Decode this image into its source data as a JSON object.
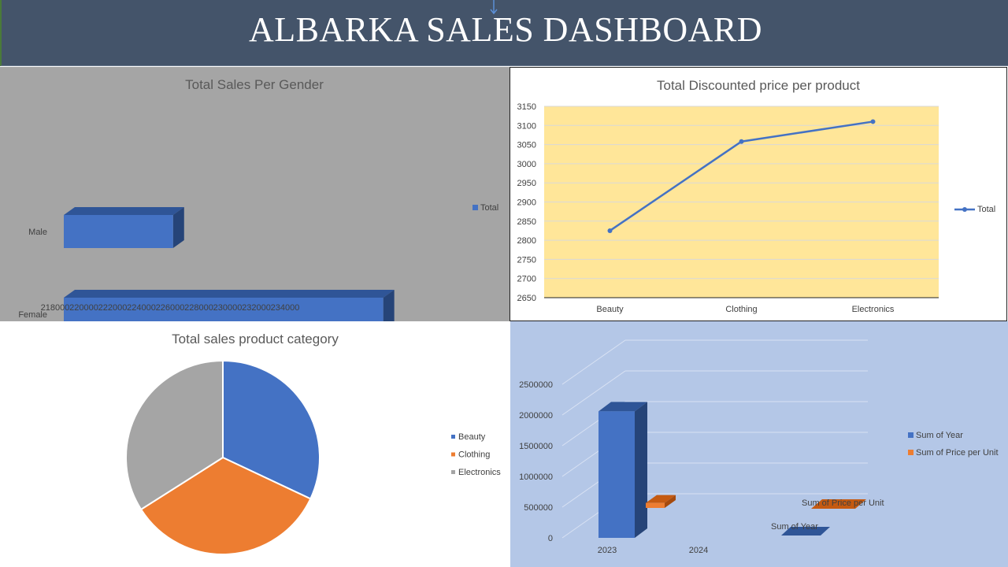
{
  "header": {
    "title": "ALBARKA SALES DASHBOARD"
  },
  "colors": {
    "header_bg": "#44546a",
    "blue": "#4472c4",
    "orange": "#ed7d31",
    "gray": "#a5a5a5",
    "plot_yellow": "#ffe699",
    "panel_blue": "#b4c7e7"
  },
  "chart_data": [
    {
      "id": "gender",
      "type": "bar",
      "orientation": "horizontal",
      "title": "Total Sales Per Gender",
      "categories": [
        "Male",
        "Female"
      ],
      "series": [
        {
          "name": "Total",
          "values": [
            223200,
            233200
          ]
        }
      ],
      "xlim": [
        218000,
        234000
      ],
      "xticks": [
        "218000",
        "220000",
        "222000",
        "224000",
        "226000",
        "228000",
        "230000",
        "232000",
        "234000"
      ],
      "legend": "right",
      "grid": false
    },
    {
      "id": "discount",
      "type": "line",
      "title": "Total Discounted price per product",
      "categories": [
        "Beauty",
        "Clothing",
        "Electronics"
      ],
      "series": [
        {
          "name": "Total",
          "values": [
            2825,
            3058,
            3110
          ]
        }
      ],
      "ylim": [
        2650,
        3150
      ],
      "yticks": [
        "3150",
        "3100",
        "3050",
        "3000",
        "2950",
        "2900",
        "2850",
        "2800",
        "2750",
        "2700",
        "2650"
      ],
      "legend": "right",
      "grid": true
    },
    {
      "id": "category",
      "type": "pie",
      "title": "Total sales product category",
      "categories": [
        "Beauty",
        "Clothing",
        "Electronics"
      ],
      "values": [
        32,
        34,
        34
      ],
      "legend": "right"
    },
    {
      "id": "year",
      "type": "bar",
      "title": "",
      "categories": [
        "2023",
        "2024"
      ],
      "series": [
        {
          "name": "Sum of Year",
          "values": [
            2060000,
            0
          ]
        },
        {
          "name": "Sum of Price per Unit",
          "values": [
            180000,
            0
          ]
        }
      ],
      "ylim": [
        0,
        2500000
      ],
      "yticks": [
        "2500000",
        "2000000",
        "1500000",
        "1000000",
        "500000",
        "0"
      ],
      "depth_labels": [
        "Sum of Price per Unit",
        "Sum of Year"
      ],
      "legend": "right",
      "grid": true
    }
  ]
}
